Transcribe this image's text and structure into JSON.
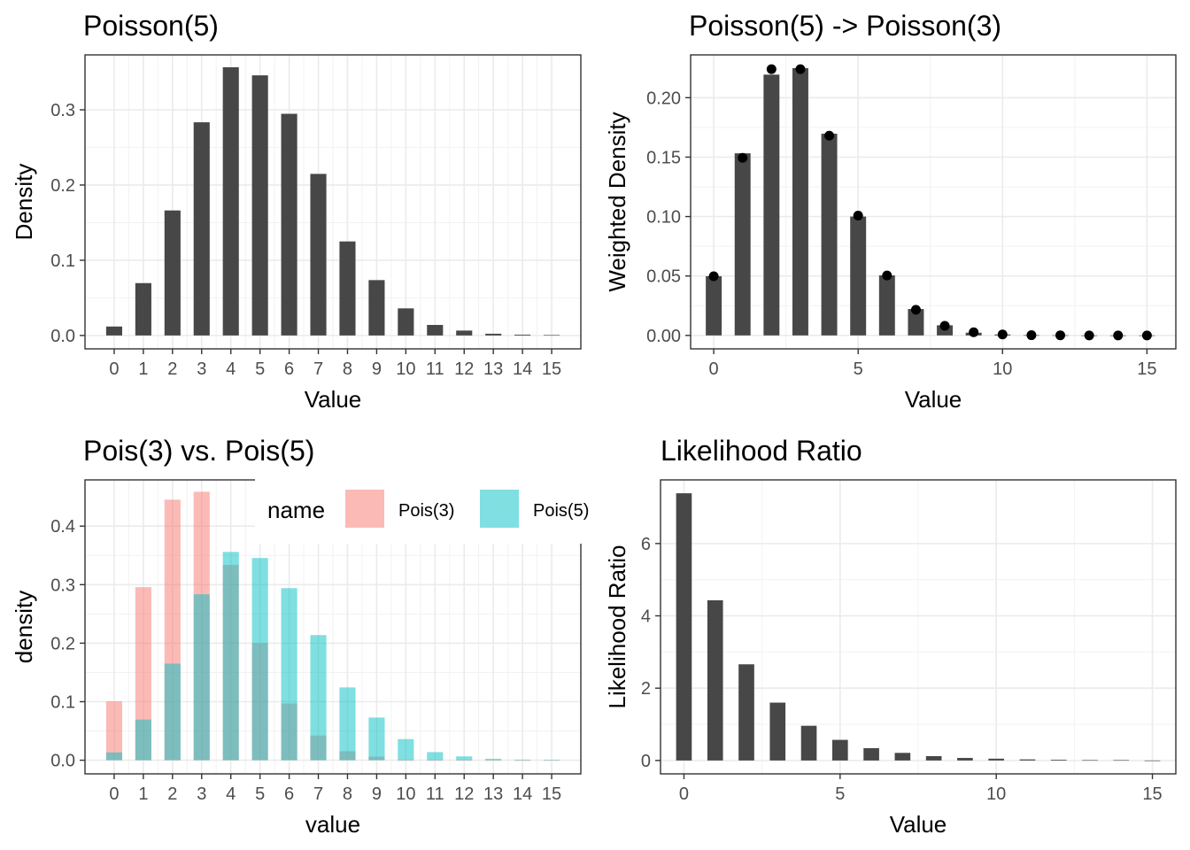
{
  "chart_data": [
    {
      "id": "p1",
      "type": "bar",
      "title": "Poisson(5)",
      "xlabel": "Value",
      "ylabel": "Density",
      "xlim": [
        -1,
        16
      ],
      "ylim": [
        -0.0178,
        0.373
      ],
      "xticks": [
        0,
        1,
        2,
        3,
        4,
        5,
        6,
        7,
        8,
        9,
        10,
        11,
        12,
        13,
        14,
        15
      ],
      "yticks": [
        0.0,
        0.1,
        0.2,
        0.3
      ],
      "ytick_labels": [
        "0.0",
        "0.1",
        "0.2",
        "0.3"
      ],
      "x": [
        0,
        1,
        2,
        3,
        4,
        5,
        6,
        7,
        8,
        9,
        10,
        11,
        12,
        13,
        14,
        15
      ],
      "series": [
        {
          "values": [
            0.0119,
            0.0696,
            0.1662,
            0.2834,
            0.3566,
            0.3458,
            0.2947,
            0.2148,
            0.125,
            0.0736,
            0.036,
            0.014,
            0.0065,
            0.0023,
            0.0011,
            0.0005
          ],
          "color": "#474747"
        }
      ]
    },
    {
      "id": "p2",
      "type": "bar",
      "title": "Poisson(5) -> Poisson(3)",
      "xlabel": "Value",
      "ylabel": "Weighted Density",
      "xlim": [
        -0.8,
        16.0
      ],
      "ylim": [
        -0.0113,
        0.236
      ],
      "xticks": [
        0,
        5,
        10,
        15
      ],
      "yticks": [
        0.0,
        0.05,
        0.1,
        0.15,
        0.2
      ],
      "ytick_labels": [
        "0.00",
        "0.05",
        "0.10",
        "0.15",
        "0.20"
      ],
      "x": [
        0,
        1,
        2,
        3,
        4,
        5,
        6,
        7,
        8,
        9,
        10,
        11,
        12,
        13,
        14,
        15
      ],
      "series": [
        {
          "name": "bars",
          "values": [
            0.0498,
            0.1532,
            0.2194,
            0.2249,
            0.1697,
            0.1,
            0.0505,
            0.0222,
            0.0085,
            0.0023,
            0.0008,
            0.0002,
            0.0001,
            0.0,
            0.0,
            0.0
          ],
          "color": "#474747"
        },
        {
          "name": "points",
          "values": [
            0.0498,
            0.1494,
            0.224,
            0.224,
            0.168,
            0.1008,
            0.0504,
            0.0216,
            0.0081,
            0.0027,
            0.0008,
            0.0002,
            0.0001,
            0.0,
            0.0,
            0.0
          ],
          "color": "#000000"
        }
      ]
    },
    {
      "id": "p3",
      "type": "bar",
      "title": "Pois(3) vs. Pois(5)",
      "xlabel": "value",
      "ylabel": "density",
      "xlim": [
        -1,
        16
      ],
      "ylim": [
        -0.0233,
        0.479
      ],
      "xticks": [
        0,
        1,
        2,
        3,
        4,
        5,
        6,
        7,
        8,
        9,
        10,
        11,
        12,
        13,
        14,
        15
      ],
      "yticks": [
        0.0,
        0.1,
        0.2,
        0.3,
        0.4
      ],
      "ytick_labels": [
        "0.0",
        "0.1",
        "0.2",
        "0.3",
        "0.4"
      ],
      "x": [
        0,
        1,
        2,
        3,
        4,
        5,
        6,
        7,
        8,
        9,
        10,
        11,
        12,
        13,
        14,
        15
      ],
      "legend": {
        "title": "name",
        "position": "top-right"
      },
      "series": [
        {
          "name": "Pois(3)",
          "values": [
            0.1006,
            0.2957,
            0.4452,
            0.4587,
            0.3337,
            0.2002,
            0.0969,
            0.0422,
            0.0153,
            0.0061,
            0.0,
            0.0,
            0.0,
            0.0,
            0.0,
            0.0
          ],
          "color": "#F8766D"
        },
        {
          "name": "Pois(5)",
          "values": [
            0.0133,
            0.0694,
            0.1651,
            0.2836,
            0.3559,
            0.3455,
            0.294,
            0.2138,
            0.1244,
            0.0729,
            0.0361,
            0.0138,
            0.0066,
            0.0025,
            0.001,
            0.0004
          ],
          "color": "#00BFC4"
        }
      ]
    },
    {
      "id": "p4",
      "type": "bar",
      "title": "Likelihood Ratio",
      "xlabel": "Value",
      "ylabel": "Likelihood Ratio",
      "xlim": [
        -0.75,
        15.75
      ],
      "ylim": [
        -0.37,
        7.76
      ],
      "xticks": [
        0,
        5,
        10,
        15
      ],
      "yticks": [
        0,
        2,
        4,
        6
      ],
      "ytick_labels": [
        "0",
        "2",
        "4",
        "6"
      ],
      "x": [
        0,
        1,
        2,
        3,
        4,
        5,
        6,
        7,
        8,
        9,
        10,
        11,
        12,
        13,
        14,
        15
      ],
      "series": [
        {
          "values": [
            7.39,
            4.43,
            2.66,
            1.6,
            0.96,
            0.57,
            0.34,
            0.21,
            0.12,
            0.07,
            0.05,
            0.03,
            0.02,
            0.01,
            0.01,
            0.0
          ],
          "color": "#474747"
        }
      ]
    }
  ]
}
